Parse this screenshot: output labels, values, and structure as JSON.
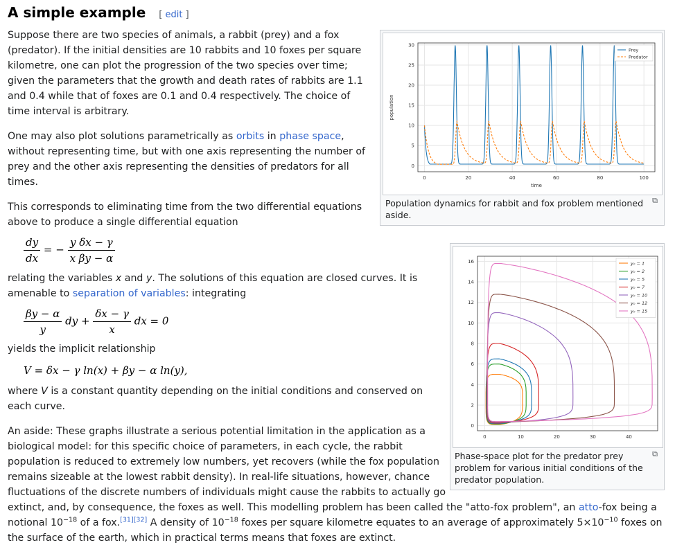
{
  "section": {
    "title": "A simple example",
    "edit_open": "[ ",
    "edit_label": "edit",
    "edit_close": " ]"
  },
  "para1": "Suppose there are two species of animals, a rabbit (prey) and a fox (predator). If the initial densities are 10 rabbits and 10 foxes per square kilometre, one can plot the progression of the two species over time; given the parameters that the growth and death rates of rabbits are 1.1 and 0.4 while that of foxes are 0.1 and 0.4 respectively. The choice of time interval is arbitrary.",
  "para2": {
    "t1": "One may also plot solutions parametrically as ",
    "link_orbits": "orbits",
    "t2": " in ",
    "link_phase": "phase space",
    "t3": ", without representing time, but with one axis representing the number of prey and the other axis representing the densities of predators for all times."
  },
  "para3": "This corresponds to eliminating time from the two differential equations above to produce a single differential equation",
  "eq1": {
    "lhs_num": "dy",
    "lhs_den": "dx",
    "eq": "=",
    "minus": "−",
    "rhs_num": "y  δx − γ",
    "rhs_den": "x  βy − α"
  },
  "para4": {
    "t1": "relating the variables ",
    "x": "x",
    "t2": " and ",
    "y": "y",
    "t3": ". The solutions of this equation are closed curves. It is amenable to ",
    "link": "separation of variables",
    "t4": ": integrating"
  },
  "eq2": {
    "f1_num": "βy − α",
    "f1_den": "y",
    "dy": "dy +",
    "f2_num": "δx − γ",
    "f2_den": "x",
    "dx": "dx = 0"
  },
  "para5": "yields the implicit relationship",
  "eq3": "V = δx − γ ln(x) + βy − α ln(y),",
  "para6": {
    "t1": "where ",
    "V": "V",
    "t2": " is a constant quantity depending on the initial conditions and conserved on each curve."
  },
  "para7": {
    "t1": "An aside: These graphs illustrate a serious potential limitation in the application as a biological model: for this specific choice of parameters, in each cycle, the rabbit population is reduced to extremely low numbers, yet recovers (while the fox population remains sizeable at the lowest rabbit density). In real-life situations, however, chance fluctuations of the discrete numbers of individuals might cause the rabbits to actually go extinct, and, by consequence, the foxes as well. This modelling problem has been called the \"atto-fox problem\", an ",
    "link_atto": "atto",
    "t2": "-fox being a notional 10",
    "exp1": "−18",
    "t3": " of a fox.",
    "ref1": "[31]",
    "ref2": "[32]",
    "t4": " A density of 10",
    "exp2": "−18",
    "t5": " foxes per square kilometre equates to an average of approximately 5×10",
    "exp3": "−10",
    "t6": " foxes on the surface of the earth, which in practical terms means that foxes are extinct."
  },
  "colors": {
    "link": "#3366cc",
    "prey": "#1f77b4",
    "predator": "#ff7f0e"
  },
  "chart_data": [
    {
      "type": "line",
      "xlabel": "time",
      "ylabel": "population",
      "xlim": [
        0,
        100
      ],
      "ylim": [
        0,
        30
      ],
      "xticks": [
        "0",
        "20",
        "40",
        "60",
        "80",
        "100"
      ],
      "yticks": [
        "0",
        "5",
        "10",
        "15",
        "20",
        "25",
        "30"
      ],
      "grid": true,
      "legend": "top-right",
      "peak_times": [
        14,
        28.5,
        43,
        57.5,
        72,
        86.5
      ],
      "prey_peak": 29.5,
      "predator_peak": 11,
      "series": [
        {
          "name": "Prey",
          "color": "#1f77b4",
          "style": "solid",
          "initial": 10
        },
        {
          "name": "Predator",
          "color": "#ff7f0e",
          "style": "dashed",
          "initial": 10
        }
      ],
      "caption": "Population dynamics for rabbit and fox problem mentioned aside."
    },
    {
      "type": "line",
      "xlim": [
        -2,
        48
      ],
      "ylim": [
        -0.5,
        16.5
      ],
      "xticks": [
        "0",
        "10",
        "20",
        "30",
        "40"
      ],
      "yticks": [
        "0",
        "2",
        "4",
        "6",
        "8",
        "10",
        "12",
        "14",
        "16"
      ],
      "grid": true,
      "legend": "top-right",
      "series": [
        {
          "name": "y₀ = 1",
          "color": "#ff7f0e",
          "x_max": 10.5,
          "y_max": 5.0
        },
        {
          "name": "y₀ = 2",
          "color": "#2ca02c",
          "x_max": 11.5,
          "y_max": 6.0
        },
        {
          "name": "y₀ = 5",
          "color": "#1f77b4",
          "x_max": 13.0,
          "y_max": 6.5
        },
        {
          "name": "y₀ = 7",
          "color": "#d62728",
          "x_max": 15.0,
          "y_max": 8.0
        },
        {
          "name": "y₀ = 10",
          "color": "#9467bd",
          "x_max": 24.5,
          "y_max": 11.0
        },
        {
          "name": "y₀ = 12",
          "color": "#8c564b",
          "x_max": 36.0,
          "y_max": 12.8
        },
        {
          "name": "y₀ = 15",
          "color": "#e377c2",
          "x_max": 46.5,
          "y_max": 15.8
        }
      ],
      "caption": "Phase-space plot for the predator prey problem for various initial conditions of the predator population."
    }
  ]
}
